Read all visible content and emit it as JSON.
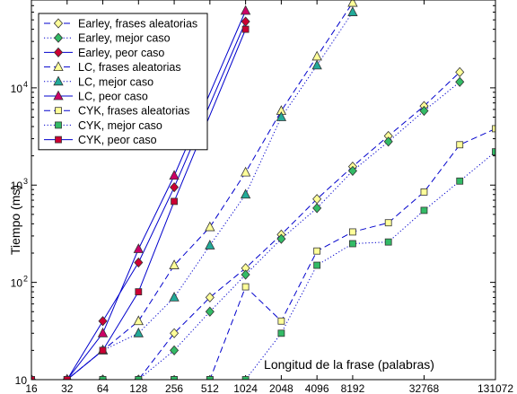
{
  "chart_data": {
    "type": "line",
    "xscale": "log2",
    "yscale": "log10",
    "xlabel": "Longitud de la frase (palabras)",
    "ylabel": "Tiempo (ms)",
    "xlim": [
      16,
      131072
    ],
    "ylim": [
      10,
      80000
    ],
    "x_ticks": [
      16,
      32,
      64,
      128,
      256,
      512,
      1024,
      2048,
      4096,
      8192,
      32768,
      131072
    ],
    "y_ticks": [
      {
        "value": 10,
        "base": "10",
        "exp": ""
      },
      {
        "value": 100,
        "base": "10",
        "exp": "2"
      },
      {
        "value": 1000,
        "base": "10",
        "exp": "3"
      },
      {
        "value": 10000,
        "base": "10",
        "exp": "4"
      }
    ],
    "legend_position": "top-left",
    "series": [
      {
        "name": "Earley, frases aleatorias",
        "marker": "diamond",
        "fill": "#ffff99",
        "stroke": "#0000cc",
        "line": "dashed",
        "x": [
          16,
          32,
          64,
          128,
          256,
          512,
          1024,
          2048,
          4096,
          8192,
          16384,
          32768,
          65536
        ],
        "y": [
          10,
          10,
          10,
          10,
          30,
          70,
          140,
          310,
          720,
          1550,
          3200,
          6500,
          14500
        ]
      },
      {
        "name": "Earley, mejor caso",
        "marker": "diamond",
        "fill": "#33bb66",
        "stroke": "#0000cc",
        "line": "dotted",
        "x": [
          16,
          32,
          64,
          128,
          256,
          512,
          1024,
          2048,
          4096,
          8192,
          16384,
          32768,
          65536
        ],
        "y": [
          10,
          10,
          10,
          10,
          20,
          50,
          120,
          280,
          580,
          1400,
          2800,
          5800,
          11500
        ]
      },
      {
        "name": "Earley, peor caso",
        "marker": "diamond",
        "fill": "#cc0033",
        "stroke": "#0000cc",
        "line": "solid",
        "x": [
          16,
          32,
          64,
          128,
          256,
          1024
        ],
        "y": [
          10,
          10,
          40,
          160,
          950,
          48000
        ]
      },
      {
        "name": "LC, frases aleatorias",
        "marker": "triangle",
        "fill": "#ffff99",
        "stroke": "#0000cc",
        "line": "dashed",
        "x": [
          16,
          32,
          64,
          128,
          256,
          512,
          1024,
          2048,
          4096,
          8192
        ],
        "y": [
          10,
          10,
          20,
          40,
          150,
          370,
          1350,
          5800,
          21000,
          75000
        ]
      },
      {
        "name": "LC, mejor caso",
        "marker": "triangle",
        "fill": "#22aa99",
        "stroke": "#0000cc",
        "line": "dotted",
        "x": [
          16,
          32,
          64,
          128,
          256,
          512,
          1024,
          2048,
          4096,
          8192
        ],
        "y": [
          10,
          10,
          20,
          30,
          70,
          240,
          800,
          5000,
          17000,
          60000
        ]
      },
      {
        "name": "LC, peor caso",
        "marker": "triangle",
        "fill": "#cc0066",
        "stroke": "#0000cc",
        "line": "solid",
        "x": [
          16,
          32,
          64,
          128,
          256,
          1024
        ],
        "y": [
          10,
          10,
          30,
          220,
          1250,
          62000
        ]
      },
      {
        "name": "CYK, frases aleatorias",
        "marker": "square",
        "fill": "#ffff99",
        "stroke": "#0000cc",
        "line": "dashed",
        "x": [
          16,
          32,
          64,
          128,
          256,
          512,
          1024,
          2048,
          4096,
          8192,
          16384,
          32768,
          65536,
          131072
        ],
        "y": [
          10,
          10,
          10,
          10,
          10,
          10,
          90,
          40,
          210,
          330,
          410,
          850,
          2600,
          3800
        ]
      },
      {
        "name": "CYK, mejor caso",
        "marker": "square",
        "fill": "#33bb66",
        "stroke": "#0000cc",
        "line": "dotted",
        "x": [
          16,
          32,
          64,
          128,
          256,
          512,
          1024,
          2048,
          4096,
          8192,
          16384,
          32768,
          65536,
          131072
        ],
        "y": [
          10,
          10,
          10,
          10,
          10,
          10,
          10,
          30,
          150,
          250,
          260,
          550,
          1100,
          2200
        ]
      },
      {
        "name": "CYK, peor caso",
        "marker": "square",
        "fill": "#cc0033",
        "stroke": "#0000cc",
        "line": "solid",
        "x": [
          16,
          32,
          64,
          128,
          256,
          1024
        ],
        "y": [
          10,
          10,
          20,
          80,
          680,
          40000
        ]
      }
    ]
  }
}
